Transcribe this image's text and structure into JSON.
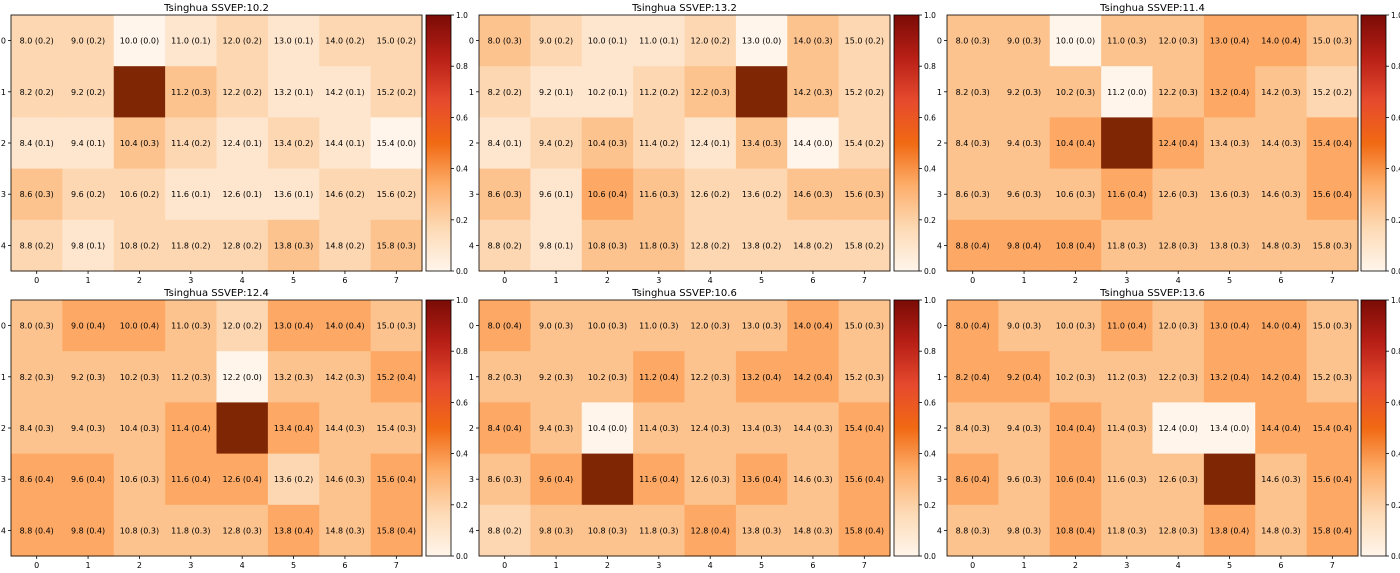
{
  "colors": {
    "cmap": [
      "#fff5eb",
      "#fdd0a2",
      "#fd8d3c",
      "#d94801",
      "#7f2704"
    ],
    "colorbar_stops": [
      "#fff5eb",
      "#fddab5",
      "#fdae6b",
      "#f16913",
      "#e64a2e",
      "#b81f16",
      "#7a0c06"
    ],
    "text": "#000000",
    "axis": "#000000"
  },
  "chart_data": [
    {
      "type": "heatmap",
      "title": "Tsinghua SSVEP:10.2",
      "x_ticks": [
        0,
        1,
        2,
        3,
        4,
        5,
        6,
        7
      ],
      "y_ticks": [
        0,
        1,
        2,
        3,
        4
      ],
      "colorbar_range": [
        0.0,
        1.0
      ],
      "colorbar_ticks": [
        "0.0",
        "0.2",
        "0.4",
        "0.6",
        "0.8",
        "1.0"
      ],
      "cells": [
        [
          "8.0 (0.2)",
          "9.0 (0.2)",
          "10.0 (0.0)",
          "11.0 (0.1)",
          "12.0 (0.2)",
          "13.0 (0.1)",
          "14.0 (0.2)",
          "15.0 (0.2)"
        ],
        [
          "8.2 (0.2)",
          "9.2 (0.2)",
          "",
          "11.2 (0.3)",
          "12.2 (0.2)",
          "13.2 (0.1)",
          "14.2 (0.1)",
          "15.2 (0.2)"
        ],
        [
          "8.4 (0.1)",
          "9.4 (0.1)",
          "10.4 (0.3)",
          "11.4 (0.2)",
          "12.4 (0.1)",
          "13.4 (0.2)",
          "14.4 (0.1)",
          "15.4 (0.0)"
        ],
        [
          "8.6 (0.3)",
          "9.6 (0.2)",
          "10.6 (0.2)",
          "11.6 (0.1)",
          "12.6 (0.1)",
          "13.6 (0.1)",
          "14.6 (0.2)",
          "15.6 (0.2)"
        ],
        [
          "8.8 (0.2)",
          "9.8 (0.1)",
          "10.8 (0.2)",
          "11.8 (0.2)",
          "12.8 (0.2)",
          "13.8 (0.3)",
          "14.8 (0.2)",
          "15.8 (0.3)"
        ]
      ],
      "values": [
        [
          0.2,
          0.2,
          0.0,
          0.1,
          0.2,
          0.1,
          0.2,
          0.2
        ],
        [
          0.2,
          0.2,
          1.0,
          0.3,
          0.2,
          0.1,
          0.1,
          0.2
        ],
        [
          0.1,
          0.1,
          0.3,
          0.2,
          0.1,
          0.2,
          0.1,
          0.0
        ],
        [
          0.3,
          0.2,
          0.2,
          0.1,
          0.1,
          0.1,
          0.2,
          0.2
        ],
        [
          0.2,
          0.1,
          0.2,
          0.2,
          0.2,
          0.3,
          0.2,
          0.3
        ]
      ]
    },
    {
      "type": "heatmap",
      "title": "Tsinghua SSVEP:13.2",
      "x_ticks": [
        0,
        1,
        2,
        3,
        4,
        5,
        6,
        7
      ],
      "y_ticks": [
        0,
        1,
        2,
        3,
        4
      ],
      "colorbar_range": [
        0.0,
        1.0
      ],
      "colorbar_ticks": [
        "0.0",
        "0.2",
        "0.4",
        "0.6",
        "0.8",
        "1.0"
      ],
      "cells": [
        [
          "8.0 (0.3)",
          "9.0 (0.2)",
          "10.0 (0.1)",
          "11.0 (0.1)",
          "12.0 (0.2)",
          "13.0 (0.0)",
          "14.0 (0.3)",
          "15.0 (0.2)"
        ],
        [
          "8.2 (0.2)",
          "9.2 (0.1)",
          "10.2 (0.1)",
          "11.2 (0.2)",
          "12.2 (0.3)",
          "",
          "14.2 (0.3)",
          "15.2 (0.2)"
        ],
        [
          "8.4 (0.1)",
          "9.4 (0.2)",
          "10.4 (0.3)",
          "11.4 (0.2)",
          "12.4 (0.1)",
          "13.4 (0.3)",
          "14.4 (0.0)",
          "15.4 (0.2)"
        ],
        [
          "8.6 (0.3)",
          "9.6 (0.1)",
          "10.6 (0.4)",
          "11.6 (0.3)",
          "12.6 (0.2)",
          "13.6 (0.2)",
          "14.6 (0.3)",
          "15.6 (0.3)"
        ],
        [
          "8.8 (0.2)",
          "9.8 (0.1)",
          "10.8 (0.3)",
          "11.8 (0.3)",
          "12.8 (0.2)",
          "13.8 (0.2)",
          "14.8 (0.2)",
          "15.8 (0.2)"
        ]
      ],
      "values": [
        [
          0.3,
          0.2,
          0.1,
          0.1,
          0.2,
          0.0,
          0.3,
          0.2
        ],
        [
          0.2,
          0.1,
          0.1,
          0.2,
          0.3,
          1.0,
          0.3,
          0.2
        ],
        [
          0.1,
          0.2,
          0.3,
          0.2,
          0.1,
          0.3,
          0.0,
          0.2
        ],
        [
          0.3,
          0.1,
          0.4,
          0.3,
          0.2,
          0.2,
          0.3,
          0.3
        ],
        [
          0.2,
          0.1,
          0.3,
          0.3,
          0.2,
          0.2,
          0.2,
          0.2
        ]
      ]
    },
    {
      "type": "heatmap",
      "title": "Tsinghua SSVEP:11.4",
      "x_ticks": [
        0,
        1,
        2,
        3,
        4,
        5,
        6,
        7
      ],
      "y_ticks": [
        0,
        1,
        2,
        3,
        4
      ],
      "colorbar_range": [
        0.0,
        1.0
      ],
      "colorbar_ticks": [
        "0.0",
        "0.2",
        "0.4",
        "0.6",
        "0.8",
        "1.0"
      ],
      "cells": [
        [
          "8.0 (0.3)",
          "9.0 (0.3)",
          "10.0 (0.0)",
          "11.0 (0.3)",
          "12.0 (0.3)",
          "13.0 (0.4)",
          "14.0 (0.4)",
          "15.0 (0.3)"
        ],
        [
          "8.2 (0.3)",
          "9.2 (0.3)",
          "10.2 (0.3)",
          "11.2 (0.0)",
          "12.2 (0.3)",
          "13.2 (0.4)",
          "14.2 (0.3)",
          "15.2 (0.2)"
        ],
        [
          "8.4 (0.3)",
          "9.4 (0.3)",
          "10.4 (0.4)",
          "",
          "12.4 (0.4)",
          "13.4 (0.3)",
          "14.4 (0.3)",
          "15.4 (0.4)"
        ],
        [
          "8.6 (0.3)",
          "9.6 (0.3)",
          "10.6 (0.3)",
          "11.6 (0.4)",
          "12.6 (0.3)",
          "13.6 (0.3)",
          "14.6 (0.3)",
          "15.6 (0.4)"
        ],
        [
          "8.8 (0.4)",
          "9.8 (0.4)",
          "10.8 (0.4)",
          "11.8 (0.3)",
          "12.8 (0.3)",
          "13.8 (0.3)",
          "14.8 (0.3)",
          "15.8 (0.3)"
        ]
      ],
      "values": [
        [
          0.3,
          0.3,
          0.0,
          0.3,
          0.3,
          0.4,
          0.4,
          0.3
        ],
        [
          0.3,
          0.3,
          0.3,
          0.0,
          0.3,
          0.4,
          0.3,
          0.2
        ],
        [
          0.3,
          0.3,
          0.4,
          1.0,
          0.4,
          0.3,
          0.3,
          0.4
        ],
        [
          0.3,
          0.3,
          0.3,
          0.4,
          0.3,
          0.3,
          0.3,
          0.4
        ],
        [
          0.4,
          0.4,
          0.4,
          0.3,
          0.3,
          0.3,
          0.3,
          0.3
        ]
      ]
    },
    {
      "type": "heatmap",
      "title": "Tsinghua SSVEP:12.4",
      "x_ticks": [
        0,
        1,
        2,
        3,
        4,
        5,
        6,
        7
      ],
      "y_ticks": [
        0,
        1,
        2,
        3,
        4
      ],
      "colorbar_range": [
        0.0,
        1.0
      ],
      "colorbar_ticks": [
        "0.0",
        "0.2",
        "0.4",
        "0.6",
        "0.8",
        "1.0"
      ],
      "cells": [
        [
          "8.0 (0.3)",
          "9.0 (0.4)",
          "10.0 (0.4)",
          "11.0 (0.3)",
          "12.0 (0.2)",
          "13.0 (0.4)",
          "14.0 (0.4)",
          "15.0 (0.3)"
        ],
        [
          "8.2 (0.3)",
          "9.2 (0.3)",
          "10.2 (0.3)",
          "11.2 (0.3)",
          "12.2 (0.0)",
          "13.2 (0.3)",
          "14.2 (0.3)",
          "15.2 (0.4)"
        ],
        [
          "8.4 (0.3)",
          "9.4 (0.3)",
          "10.4 (0.3)",
          "11.4 (0.4)",
          "",
          "13.4 (0.4)",
          "14.4 (0.3)",
          "15.4 (0.3)"
        ],
        [
          "8.6 (0.4)",
          "9.6 (0.4)",
          "10.6 (0.3)",
          "11.6 (0.4)",
          "12.6 (0.4)",
          "13.6 (0.2)",
          "14.6 (0.3)",
          "15.6 (0.4)"
        ],
        [
          "8.8 (0.4)",
          "9.8 (0.4)",
          "10.8 (0.3)",
          "11.8 (0.3)",
          "12.8 (0.3)",
          "13.8 (0.4)",
          "14.8 (0.3)",
          "15.8 (0.4)"
        ]
      ],
      "values": [
        [
          0.3,
          0.4,
          0.4,
          0.3,
          0.2,
          0.4,
          0.4,
          0.3
        ],
        [
          0.3,
          0.3,
          0.3,
          0.3,
          0.0,
          0.3,
          0.3,
          0.4
        ],
        [
          0.3,
          0.3,
          0.3,
          0.4,
          1.0,
          0.4,
          0.3,
          0.3
        ],
        [
          0.4,
          0.4,
          0.3,
          0.4,
          0.4,
          0.2,
          0.3,
          0.4
        ],
        [
          0.4,
          0.4,
          0.3,
          0.3,
          0.3,
          0.4,
          0.3,
          0.4
        ]
      ]
    },
    {
      "type": "heatmap",
      "title": "Tsinghua SSVEP:10.6",
      "x_ticks": [
        0,
        1,
        2,
        3,
        4,
        5,
        6,
        7
      ],
      "y_ticks": [
        0,
        1,
        2,
        3,
        4
      ],
      "colorbar_range": [
        0.0,
        1.0
      ],
      "colorbar_ticks": [
        "0.0",
        "0.2",
        "0.4",
        "0.6",
        "0.8",
        "1.0"
      ],
      "cells": [
        [
          "8.0 (0.4)",
          "9.0 (0.3)",
          "10.0 (0.3)",
          "11.0 (0.3)",
          "12.0 (0.3)",
          "13.0 (0.3)",
          "14.0 (0.4)",
          "15.0 (0.3)"
        ],
        [
          "8.2 (0.3)",
          "9.2 (0.3)",
          "10.2 (0.3)",
          "11.2 (0.4)",
          "12.2 (0.3)",
          "13.2 (0.4)",
          "14.2 (0.4)",
          "15.2 (0.3)"
        ],
        [
          "8.4 (0.4)",
          "9.4 (0.3)",
          "10.4 (0.0)",
          "11.4 (0.3)",
          "12.4 (0.3)",
          "13.4 (0.3)",
          "14.4 (0.3)",
          "15.4 (0.4)"
        ],
        [
          "8.6 (0.3)",
          "9.6 (0.4)",
          "",
          "11.6 (0.4)",
          "12.6 (0.3)",
          "13.6 (0.4)",
          "14.6 (0.3)",
          "15.6 (0.4)"
        ],
        [
          "8.8 (0.2)",
          "9.8 (0.3)",
          "10.8 (0.3)",
          "11.8 (0.3)",
          "12.8 (0.4)",
          "13.8 (0.3)",
          "14.8 (0.3)",
          "15.8 (0.4)"
        ]
      ],
      "values": [
        [
          0.4,
          0.3,
          0.3,
          0.3,
          0.3,
          0.3,
          0.4,
          0.3
        ],
        [
          0.3,
          0.3,
          0.3,
          0.4,
          0.3,
          0.4,
          0.4,
          0.3
        ],
        [
          0.4,
          0.3,
          0.0,
          0.3,
          0.3,
          0.3,
          0.3,
          0.4
        ],
        [
          0.3,
          0.4,
          1.0,
          0.4,
          0.3,
          0.4,
          0.3,
          0.4
        ],
        [
          0.2,
          0.3,
          0.3,
          0.3,
          0.4,
          0.3,
          0.3,
          0.4
        ]
      ]
    },
    {
      "type": "heatmap",
      "title": "Tsinghua SSVEP:13.6",
      "x_ticks": [
        0,
        1,
        2,
        3,
        4,
        5,
        6,
        7
      ],
      "y_ticks": [
        0,
        1,
        2,
        3,
        4
      ],
      "colorbar_range": [
        0.0,
        1.0
      ],
      "colorbar_ticks": [
        "0.0",
        "0.2",
        "0.4",
        "0.6",
        "0.8",
        "1.0"
      ],
      "cells": [
        [
          "8.0 (0.4)",
          "9.0 (0.3)",
          "10.0 (0.3)",
          "11.0 (0.4)",
          "12.0 (0.3)",
          "13.0 (0.4)",
          "14.0 (0.4)",
          "15.0 (0.3)"
        ],
        [
          "8.2 (0.4)",
          "9.2 (0.4)",
          "10.2 (0.3)",
          "11.2 (0.3)",
          "12.2 (0.3)",
          "13.2 (0.4)",
          "14.2 (0.4)",
          "15.2 (0.3)"
        ],
        [
          "8.4 (0.3)",
          "9.4 (0.3)",
          "10.4 (0.4)",
          "11.4 (0.3)",
          "12.4 (0.0)",
          "13.4 (0.0)",
          "14.4 (0.4)",
          "15.4 (0.4)"
        ],
        [
          "8.6 (0.4)",
          "9.6 (0.3)",
          "10.6 (0.4)",
          "11.6 (0.3)",
          "12.6 (0.3)",
          "",
          "14.6 (0.3)",
          "15.6 (0.4)"
        ],
        [
          "8.8 (0.3)",
          "9.8 (0.3)",
          "10.8 (0.4)",
          "11.8 (0.3)",
          "12.8 (0.3)",
          "13.8 (0.4)",
          "14.8 (0.3)",
          "15.8 (0.4)"
        ]
      ],
      "values": [
        [
          0.4,
          0.3,
          0.3,
          0.4,
          0.3,
          0.4,
          0.4,
          0.3
        ],
        [
          0.4,
          0.4,
          0.3,
          0.3,
          0.3,
          0.4,
          0.4,
          0.3
        ],
        [
          0.3,
          0.3,
          0.4,
          0.3,
          0.0,
          0.0,
          0.4,
          0.4
        ],
        [
          0.4,
          0.3,
          0.4,
          0.3,
          0.3,
          1.0,
          0.3,
          0.4
        ],
        [
          0.3,
          0.3,
          0.4,
          0.3,
          0.3,
          0.4,
          0.3,
          0.4
        ]
      ]
    }
  ]
}
